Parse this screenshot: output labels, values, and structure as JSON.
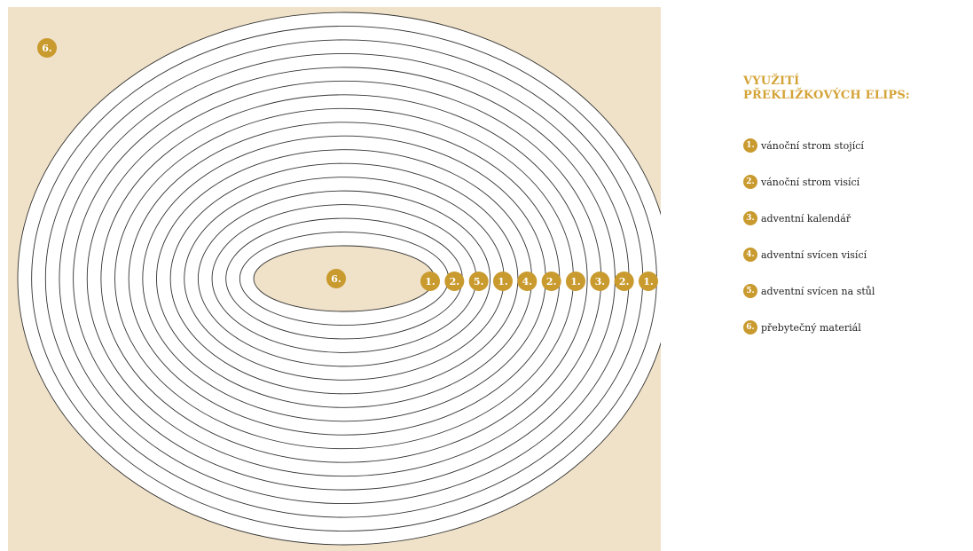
{
  "colors": {
    "board": "#f0e2c8",
    "ring_fill": "#ffffff",
    "ring_stroke": "#333333",
    "badge": "#c99a2e",
    "title": "#d4a337"
  },
  "diagram": {
    "ring_count": 17,
    "corner_badge": "6.",
    "center_badge": "6.",
    "row_badges": [
      "1.",
      "2.",
      "5.",
      "1.",
      "4.",
      "2.",
      "1.",
      "3.",
      "2.",
      "1."
    ]
  },
  "legend": {
    "title_line1": "VYUŽITÍ",
    "title_line2": "PŘEKLIŽKOVÝCH ELIPS:",
    "items": [
      {
        "num": "1.",
        "label": "vánoční strom stojící"
      },
      {
        "num": "2.",
        "label": "vánoční strom visící"
      },
      {
        "num": "3.",
        "label": "adventní kalendář"
      },
      {
        "num": "4.",
        "label": "adventní svícen visící"
      },
      {
        "num": "5.",
        "label": "adventní svícen na stůl"
      },
      {
        "num": "6.",
        "label": "přebytečný materiál"
      }
    ]
  }
}
